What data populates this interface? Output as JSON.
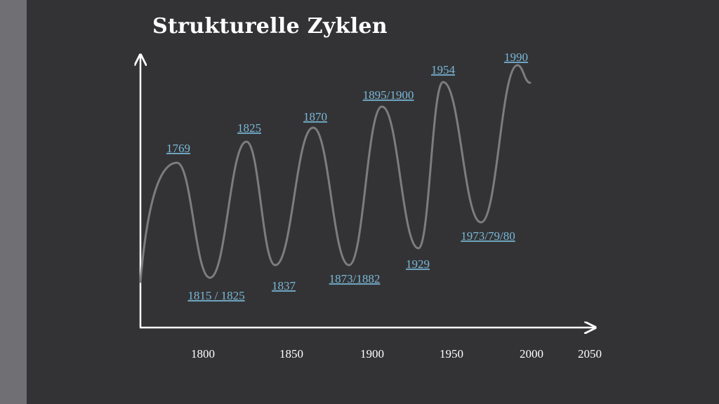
{
  "chart_data": {
    "type": "line",
    "title": "Strukturelle Zyklen",
    "xlabel": "",
    "ylabel": "",
    "x_ticks": [
      "1800",
      "1850",
      "1900",
      "1950",
      "2000",
      "2050"
    ],
    "series_color": "#7d7d80",
    "annotation_color": "#7ab8d8",
    "annotations": [
      {
        "label": "1769",
        "kind": "peak"
      },
      {
        "label": "1815 / 1825",
        "kind": "trough"
      },
      {
        "label": "1825",
        "kind": "peak"
      },
      {
        "label": "1837",
        "kind": "trough"
      },
      {
        "label": "1870",
        "kind": "peak"
      },
      {
        "label": "1873/1882",
        "kind": "trough"
      },
      {
        "label": "1895/1900",
        "kind": "peak"
      },
      {
        "label": "1929",
        "kind": "trough"
      },
      {
        "label": "1954",
        "kind": "peak"
      },
      {
        "label": "1973/79/80",
        "kind": "trough"
      },
      {
        "label": "1990",
        "kind": "peak"
      }
    ]
  }
}
